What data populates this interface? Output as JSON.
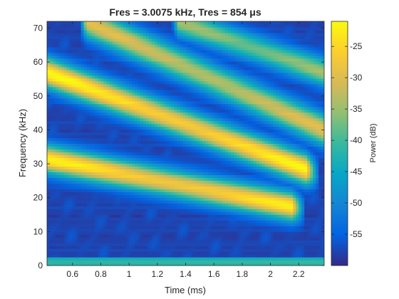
{
  "chart_data": {
    "type": "heatmap",
    "title": "Fres = 3.0075 kHz, Tres = 854 μs",
    "xlabel": "Time (ms)",
    "ylabel": "Frequency (kHz)",
    "colorbar_label": "Power (dB)",
    "xlim": [
      0.42,
      2.38
    ],
    "ylim": [
      0,
      72
    ],
    "clim": [
      -60,
      -21
    ],
    "colormap": "parula",
    "x_ticks": [
      0.6,
      0.8,
      1,
      1.2,
      1.4,
      1.6,
      1.8,
      2,
      2.2
    ],
    "x_tick_labels": [
      "0.6",
      "0.8",
      "1",
      "1.2",
      "1.4",
      "1.6",
      "1.8",
      "2",
      "2.2"
    ],
    "y_ticks": [
      0,
      10,
      20,
      30,
      40,
      50,
      60,
      70
    ],
    "y_tick_labels": [
      "0",
      "10",
      "20",
      "30",
      "40",
      "50",
      "60",
      "70"
    ],
    "colorbar_ticks": [
      -55,
      -50,
      -45,
      -40,
      -35,
      -30,
      -25
    ],
    "colorbar_tick_labels": [
      "-55",
      "-50",
      "-45",
      "-40",
      "-35",
      "-30",
      "-25"
    ],
    "colormap_stops": [
      "#352a87",
      "#0363e1",
      "#1485d4",
      "#06a7c6",
      "#38b99e",
      "#92bf73",
      "#d9ba56",
      "#fcce2e",
      "#f9fb0e"
    ],
    "ridges": [
      {
        "t_start": 0.42,
        "t_end": 2.15,
        "f_start": 31.5,
        "f_end": 17.5,
        "peak_db": -22,
        "width_khz": 3.2
      },
      {
        "t_start": 0.42,
        "t_end": 2.25,
        "f_start": 57,
        "f_end": 28.5,
        "peak_db": -21,
        "width_khz": 3.4
      },
      {
        "t_start": 0.7,
        "t_end": 2.38,
        "f_start": 72,
        "f_end": 40,
        "peak_db": -29,
        "width_khz": 3.6
      },
      {
        "t_start": 1.35,
        "t_end": 2.38,
        "f_start": 72,
        "f_end": 57,
        "peak_db": -34,
        "width_khz": 3.2
      }
    ],
    "background_db": -58,
    "noise_floor_band_khz": [
      0,
      2.5
    ],
    "noise_floor_db": -42
  }
}
